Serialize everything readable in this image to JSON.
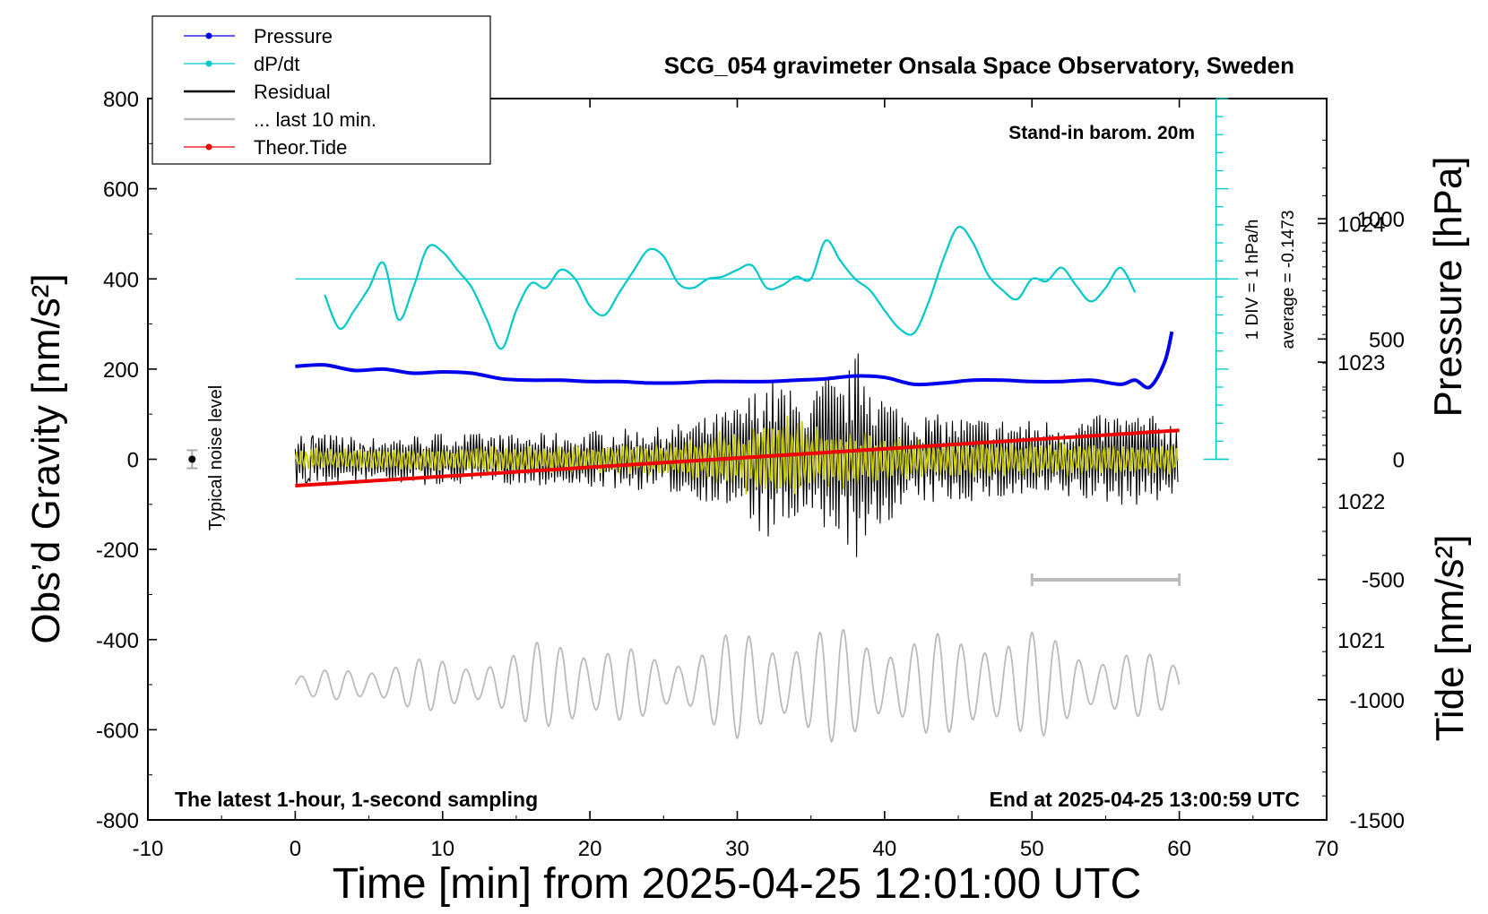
{
  "chart_data": {
    "type": "line",
    "title": "SCG_054 gravimeter Onsala Space Observatory, Sweden",
    "xlabel": "Time [min] from 2025-04-25 12:01:00 UTC",
    "ylabel_left": "Obs’d Gravity [nm/s²]",
    "ylabel_right_top": "Pressure [hPa]",
    "ylabel_right_bottom": "Tide [nm/s²]",
    "xlim": [
      -10,
      70
    ],
    "ylim": [
      -800,
      800
    ],
    "xticks": [
      "-10",
      "0",
      "10",
      "20",
      "30",
      "40",
      "50",
      "60",
      "70"
    ],
    "yticks": [
      "-800",
      "-600",
      "-400",
      "-200",
      "0",
      "200",
      "400",
      "600",
      "800"
    ],
    "pressure_axis": {
      "ylim": [
        1019.7,
        1024.9
      ],
      "ticks": [
        "1021",
        "1022",
        "1023",
        "1024"
      ]
    },
    "tide_axis": {
      "ylim": [
        -1500,
        1500
      ],
      "ticks": [
        "-1500",
        "-1000",
        "-500",
        "0",
        "500",
        "1000"
      ]
    },
    "legend_position": "top-left",
    "legend": [
      {
        "label": "Pressure",
        "color": "#0000ee",
        "marker": true
      },
      {
        "label": "dP/dt",
        "color": "#00c8c8",
        "marker": true
      },
      {
        "label": "Residual",
        "color": "#000000",
        "marker": false
      },
      {
        "label": "... last 10 min.",
        "color": "#bbbbbb",
        "marker": false
      },
      {
        "label": "Theor.Tide",
        "color": "#ee0000",
        "marker": true
      }
    ],
    "annotations": {
      "station_note": "Stand-in barom. 20m",
      "window_note": "The latest 1-hour, 1-second sampling",
      "end_note": "End at 2025-04-25 13:00:59 UTC",
      "noise_label": "Typical noise level",
      "dpdt_scale": "1 DIV = 1 hPa/h",
      "dpdt_average": "average = -0.1473"
    },
    "noise_marker": {
      "x": -7,
      "y": 0,
      "err": 20
    },
    "last10_bar": {
      "x": [
        50,
        60
      ]
    },
    "series": [
      {
        "name": "Pressure",
        "axis": "pressure",
        "color": "#0000ee",
        "x": [
          0,
          2,
          4,
          6,
          8,
          10,
          12,
          14,
          16,
          18,
          20,
          22,
          24,
          26,
          28,
          30,
          32,
          34,
          36,
          38,
          40,
          42,
          44,
          46,
          48,
          50,
          52,
          54,
          56,
          57,
          58,
          59,
          59.5
        ],
        "y": [
          1022.97,
          1022.98,
          1022.94,
          1022.95,
          1022.92,
          1022.93,
          1022.92,
          1022.88,
          1022.87,
          1022.87,
          1022.86,
          1022.86,
          1022.85,
          1022.85,
          1022.86,
          1022.86,
          1022.86,
          1022.87,
          1022.88,
          1022.9,
          1022.89,
          1022.84,
          1022.85,
          1022.87,
          1022.87,
          1022.86,
          1022.86,
          1022.87,
          1022.84,
          1022.87,
          1022.82,
          1023.0,
          1023.22
        ]
      },
      {
        "name": "dP/dt",
        "axis": "left",
        "color": "#00c8c8",
        "zero_line": 400,
        "x": [
          2,
          3,
          4,
          5,
          6,
          7,
          8,
          9,
          10,
          11,
          12,
          13,
          14,
          15,
          16,
          17,
          18,
          19,
          20,
          21,
          22,
          23,
          24,
          25,
          26,
          27,
          28,
          29,
          30,
          31,
          32,
          33,
          34,
          35,
          36,
          37,
          38,
          39,
          40,
          41,
          42,
          43,
          44,
          45,
          46,
          47,
          48,
          49,
          50,
          51,
          52,
          53,
          54,
          55,
          56,
          57
        ],
        "y": [
          365,
          290,
          330,
          380,
          435,
          310,
          380,
          470,
          460,
          420,
          380,
          310,
          245,
          330,
          390,
          380,
          420,
          400,
          340,
          320,
          370,
          420,
          465,
          450,
          390,
          380,
          400,
          405,
          420,
          430,
          380,
          385,
          405,
          400,
          485,
          440,
          400,
          375,
          330,
          290,
          280,
          350,
          445,
          515,
          480,
          410,
          375,
          355,
          400,
          395,
          425,
          385,
          350,
          380,
          425,
          370
        ]
      },
      {
        "name": "Residual",
        "axis": "left",
        "color": "#000000",
        "envelope_x": [
          0,
          5,
          10,
          15,
          20,
          25,
          28,
          30,
          32,
          33,
          34,
          35,
          36,
          37,
          38,
          38.5,
          39,
          40,
          42,
          45,
          50,
          53,
          56,
          58,
          60
        ],
        "envelope_y": [
          80,
          60,
          75,
          70,
          80,
          90,
          120,
          150,
          230,
          220,
          180,
          170,
          250,
          200,
          290,
          320,
          260,
          180,
          130,
          120,
          110,
          115,
          130,
          125,
          100
        ]
      },
      {
        "name": "Residual (filtered)",
        "axis": "left",
        "color": "#c8c800",
        "envelope_x": [
          0,
          10,
          20,
          25,
          28,
          30,
          32,
          33,
          35,
          37,
          39,
          40,
          45,
          50,
          55,
          60
        ],
        "envelope_y": [
          25,
          30,
          35,
          40,
          60,
          70,
          100,
          110,
          80,
          70,
          60,
          50,
          45,
          40,
          40,
          35
        ]
      },
      {
        "name": "... last 10 min.",
        "axis": "left",
        "color": "#bbbbbb",
        "baseline": -500,
        "envelope_x": [
          0,
          5,
          10,
          15,
          18,
          19,
          20,
          25,
          30,
          35,
          40,
          45,
          47,
          50,
          55,
          60
        ],
        "envelope_y": [
          20,
          50,
          60,
          70,
          130,
          150,
          90,
          70,
          120,
          130,
          120,
          110,
          140,
          120,
          80,
          60
        ]
      },
      {
        "name": "Theor.Tide",
        "axis": "tide",
        "color": "#ee0000",
        "x": [
          0,
          60
        ],
        "y": [
          -110,
          120
        ]
      }
    ]
  }
}
